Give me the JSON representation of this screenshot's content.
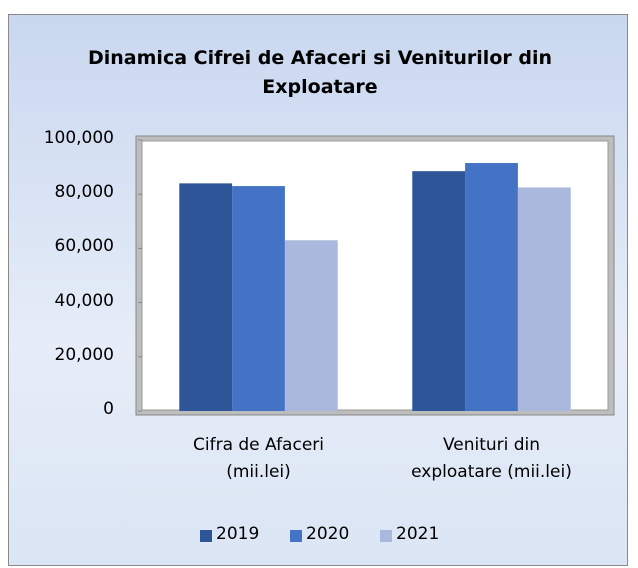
{
  "chart_data": {
    "type": "bar",
    "title": "Dinamica Cifrei de Afaceri si Veniturilor din Exploatare",
    "categories": [
      "Cifra de Afaceri (mii.lei)",
      "Venituri din exploatare (mii.lei)"
    ],
    "series": [
      {
        "name": "2019",
        "color": "#2e5597",
        "values": [
          84000,
          88500
        ]
      },
      {
        "name": "2020",
        "color": "#4472c4",
        "values": [
          83000,
          91500
        ]
      },
      {
        "name": "2021",
        "color": "#a9b8dc",
        "values": [
          63000,
          82500
        ]
      }
    ],
    "ylim": [
      0,
      100000
    ],
    "yticks": [
      0,
      {
        "value": 20000,
        "label": "20,000"
      },
      {
        "value": 40000,
        "label": "40,000"
      },
      {
        "value": 60000,
        "label": "60,000"
      },
      {
        "value": 80000,
        "label": "80,000"
      },
      {
        "value": 100000,
        "label": "100,000"
      }
    ],
    "grid": false,
    "legend": "bottom"
  }
}
